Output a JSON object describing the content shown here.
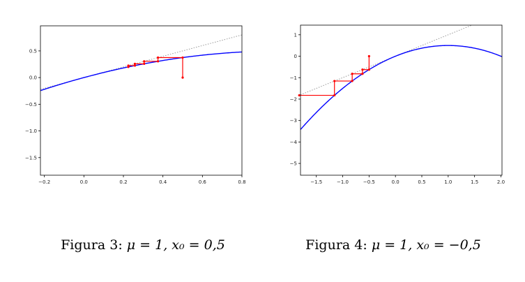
{
  "chart_data": [
    {
      "type": "line",
      "xlim": [
        -0.22,
        0.8
      ],
      "ylim": [
        -1.83,
        0.97
      ],
      "xticks": [
        "−0.2",
        "0.0",
        "0.2",
        "0.4",
        "0.6",
        "0.8"
      ],
      "xtick_values": [
        -0.2,
        0.0,
        0.2,
        0.4,
        0.6,
        0.8
      ],
      "yticks": [
        "0.5",
        "0.0",
        "−0.5",
        "−1.0",
        "−1.5"
      ],
      "ytick_values": [
        0.5,
        0.0,
        -0.5,
        -1.0,
        -1.5
      ],
      "grid": false,
      "colors": {
        "curve": "#0000ff",
        "iteration": "#ff0000",
        "identity": "#999999"
      },
      "curve": {
        "function": "x - x^2/2",
        "x_range": [
          -0.22,
          0.8
        ]
      },
      "identity_line": "y = x",
      "iteration_points": [
        [
          0.5,
          0.0
        ],
        [
          0.5,
          0.375
        ],
        [
          0.375,
          0.375
        ],
        [
          0.375,
          0.305
        ],
        [
          0.305,
          0.305
        ],
        [
          0.305,
          0.258
        ],
        [
          0.258,
          0.258
        ],
        [
          0.258,
          0.225
        ],
        [
          0.225,
          0.225
        ],
        [
          0.225,
          0.2
        ]
      ],
      "caption": {
        "prefix": "Figura 3: ",
        "mu_part": "μ = 1,",
        "x0_part": "x₀ = 0,5"
      }
    },
    {
      "type": "line",
      "xlim": [
        -1.8,
        2.02
      ],
      "ylim": [
        -5.55,
        1.45
      ],
      "xticks": [
        "−1.5",
        "−1.0",
        "−0.5",
        "0.0",
        "0.5",
        "1.0",
        "1.5",
        "2.0"
      ],
      "xtick_values": [
        -1.5,
        -1.0,
        -0.5,
        0.0,
        0.5,
        1.0,
        1.5,
        2.0
      ],
      "yticks": [
        "1",
        "0",
        "−1",
        "−2",
        "−3",
        "−4",
        "−5"
      ],
      "ytick_values": [
        1,
        0,
        -1,
        -2,
        -3,
        -4,
        -5
      ],
      "grid": false,
      "colors": {
        "curve": "#0000ff",
        "iteration": "#ff0000",
        "identity": "#999999"
      },
      "curve": {
        "function": "x - x^2/2",
        "x_range": [
          -1.8,
          2.02
        ]
      },
      "identity_line": "y = x",
      "iteration_points": [
        [
          -0.5,
          0.0
        ],
        [
          -0.5,
          -0.625
        ],
        [
          -0.625,
          -0.625
        ],
        [
          -0.625,
          -0.82
        ],
        [
          -0.82,
          -0.82
        ],
        [
          -0.82,
          -1.156
        ],
        [
          -1.156,
          -1.156
        ],
        [
          -1.156,
          -1.824
        ],
        [
          -1.824,
          -1.824
        ]
      ],
      "caption": {
        "prefix": "Figura 4: ",
        "mu_part": "μ = 1,",
        "x0_part": "x₀ = −0,5"
      }
    }
  ]
}
